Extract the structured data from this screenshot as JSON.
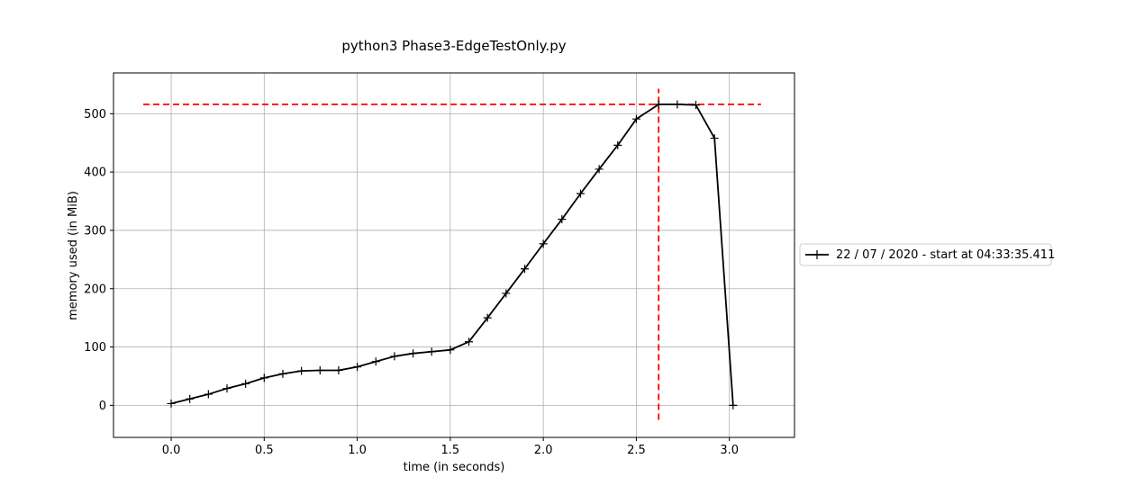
{
  "chart_data": {
    "type": "line",
    "title": "python3 Phase3-EdgeTestOnly.py",
    "xlabel": "time (in seconds)",
    "ylabel": "memory used (in MiB)",
    "xlim": [
      -0.31,
      3.35
    ],
    "ylim": [
      -55,
      570
    ],
    "x_ticks": [
      0.0,
      0.5,
      1.0,
      1.5,
      2.0,
      2.5,
      3.0
    ],
    "x_tick_labels": [
      "0.0",
      "0.5",
      "1.0",
      "1.5",
      "2.0",
      "2.5",
      "3.0"
    ],
    "y_ticks": [
      0,
      100,
      200,
      300,
      400,
      500
    ],
    "y_tick_labels": [
      "0",
      "100",
      "200",
      "300",
      "400",
      "500"
    ],
    "grid": true,
    "legend_placement": "right, outside plot",
    "series": [
      {
        "name": "22 / 07 / 2020 - start at 04:33:35.411",
        "color": "#000000",
        "marker": "plus",
        "x": [
          0.0,
          0.1,
          0.2,
          0.3,
          0.4,
          0.5,
          0.6,
          0.7,
          0.8,
          0.9,
          1.0,
          1.1,
          1.2,
          1.3,
          1.4,
          1.5,
          1.6,
          1.7,
          1.8,
          1.9,
          2.0,
          2.1,
          2.2,
          2.3,
          2.4,
          2.5,
          2.62,
          2.72,
          2.82,
          2.92,
          3.02
        ],
        "y": [
          3,
          11,
          19,
          29,
          37,
          47,
          54,
          59,
          60,
          60,
          66,
          75,
          84,
          89,
          92,
          95,
          109,
          150,
          192,
          234,
          277,
          319,
          363,
          405,
          446,
          491,
          516,
          516,
          515,
          458,
          0
        ]
      }
    ],
    "annotations": {
      "peak_hline": {
        "y": 516,
        "x_from": -0.15,
        "x_to": 3.17,
        "color": "#ff0000",
        "style": "dashed"
      },
      "peak_vline": {
        "x": 2.62,
        "y_from": -25,
        "y_to": 543,
        "color": "#ff0000",
        "style": "dashed"
      }
    }
  }
}
